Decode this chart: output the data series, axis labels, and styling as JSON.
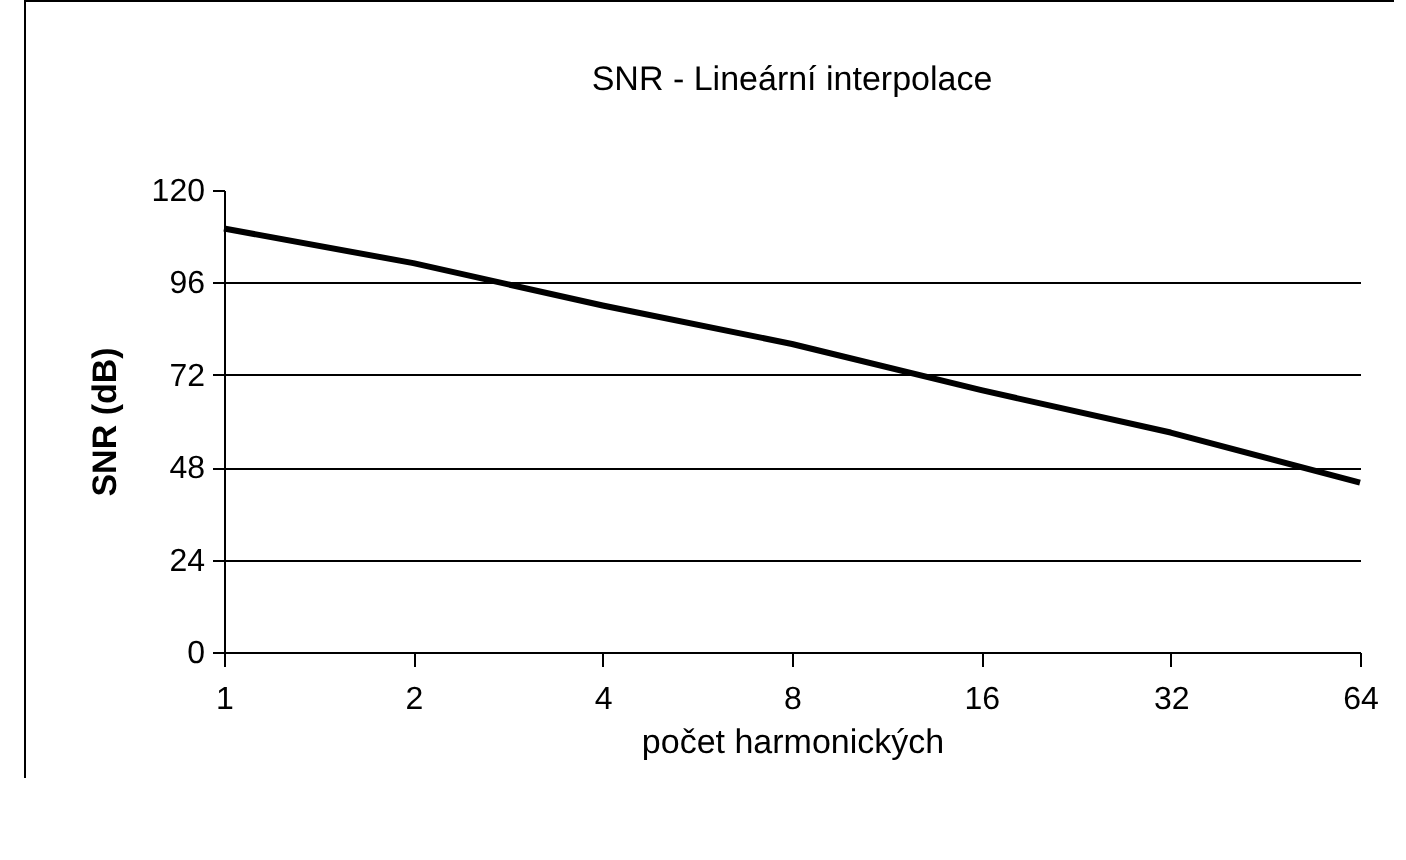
{
  "chart_data": {
    "type": "line",
    "title": "SNR - Lineární interpolace",
    "xlabel": "počet harmonických",
    "ylabel": "SNR (dB)",
    "x": [
      1,
      2,
      4,
      8,
      16,
      32,
      64
    ],
    "series": [
      {
        "color": "#000000",
        "values": [
          110,
          101,
          90,
          80,
          68,
          57,
          44
        ]
      }
    ],
    "log": "x",
    "xlim": [
      1,
      64
    ],
    "xticks": [
      1,
      2,
      4,
      8,
      16,
      32,
      64
    ],
    "ylim": [
      0,
      120
    ],
    "yticks": [
      0,
      24,
      48,
      72,
      96,
      120
    ],
    "grid": "y",
    "marker": "none",
    "line_style": "solid"
  }
}
